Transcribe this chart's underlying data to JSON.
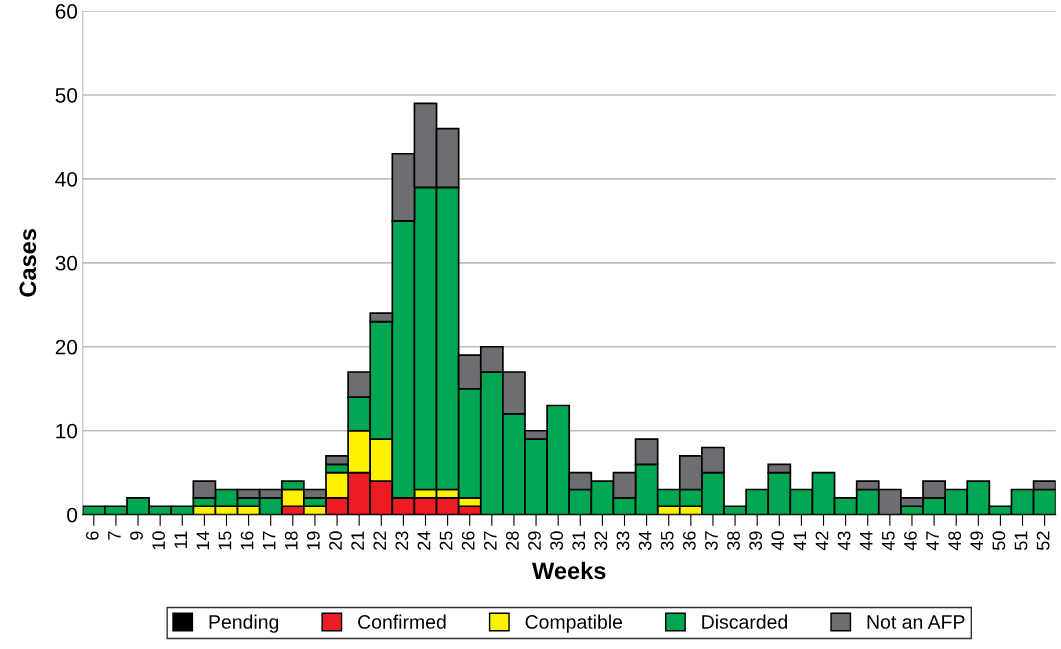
{
  "chart_data": {
    "type": "bar",
    "stacked": true,
    "xlabel": "Weeks",
    "ylabel": "Cases",
    "categories": [
      "6",
      "7",
      "9",
      "10",
      "11",
      "14",
      "15",
      "16",
      "17",
      "18",
      "19",
      "20",
      "21",
      "22",
      "23",
      "24",
      "25",
      "26",
      "27",
      "28",
      "29",
      "30",
      "31",
      "32",
      "33",
      "34",
      "35",
      "36",
      "37",
      "38",
      "39",
      "40",
      "41",
      "42",
      "43",
      "44",
      "45",
      "46",
      "47",
      "48",
      "49",
      "50",
      "51",
      "52"
    ],
    "series": [
      {
        "name": "Pending",
        "color": "#000000",
        "values": [
          0,
          0,
          0,
          0,
          0,
          0,
          0,
          0,
          0,
          0,
          0,
          0,
          0,
          0,
          0,
          0,
          0,
          0,
          0,
          0,
          0,
          0,
          0,
          0,
          0,
          0,
          0,
          0,
          0,
          0,
          0,
          0,
          0,
          0,
          0,
          0,
          0,
          0,
          0,
          0,
          0,
          0,
          0,
          0
        ]
      },
      {
        "name": "Confirmed",
        "color": "#ed1c24",
        "values": [
          0,
          0,
          0,
          0,
          0,
          0,
          0,
          0,
          0,
          1,
          0,
          2,
          5,
          4,
          2,
          2,
          2,
          1,
          0,
          0,
          0,
          0,
          0,
          0,
          0,
          0,
          0,
          0,
          0,
          0,
          0,
          0,
          0,
          0,
          0,
          0,
          0,
          0,
          0,
          0,
          0,
          0,
          0,
          0
        ]
      },
      {
        "name": "Compatible",
        "color": "#fff200",
        "values": [
          0,
          0,
          0,
          0,
          0,
          1,
          1,
          1,
          0,
          2,
          1,
          3,
          5,
          5,
          0,
          1,
          1,
          1,
          0,
          0,
          0,
          0,
          0,
          0,
          0,
          0,
          1,
          1,
          0,
          0,
          0,
          0,
          0,
          0,
          0,
          0,
          0,
          0,
          0,
          0,
          0,
          0,
          0,
          0
        ]
      },
      {
        "name": "Discarded",
        "color": "#00a651",
        "values": [
          1,
          1,
          2,
          1,
          1,
          1,
          2,
          1,
          2,
          1,
          1,
          1,
          4,
          14,
          33,
          36,
          36,
          13,
          17,
          12,
          9,
          13,
          3,
          4,
          2,
          6,
          2,
          2,
          5,
          1,
          3,
          5,
          3,
          5,
          2,
          3,
          0,
          1,
          2,
          3,
          4,
          1,
          3,
          3
        ]
      },
      {
        "name": "Not an AFP",
        "color": "#6d6e71",
        "values": [
          0,
          0,
          0,
          0,
          0,
          2,
          0,
          1,
          1,
          0,
          1,
          1,
          3,
          1,
          8,
          10,
          7,
          4,
          3,
          5,
          1,
          0,
          2,
          0,
          3,
          3,
          0,
          4,
          3,
          0,
          0,
          1,
          0,
          0,
          0,
          1,
          3,
          1,
          2,
          0,
          0,
          0,
          0,
          1
        ]
      }
    ],
    "ylim": [
      0,
      60
    ],
    "yticks": [
      0,
      10,
      20,
      30,
      40,
      50,
      60
    ],
    "grid": "y",
    "legend": "bottom"
  }
}
